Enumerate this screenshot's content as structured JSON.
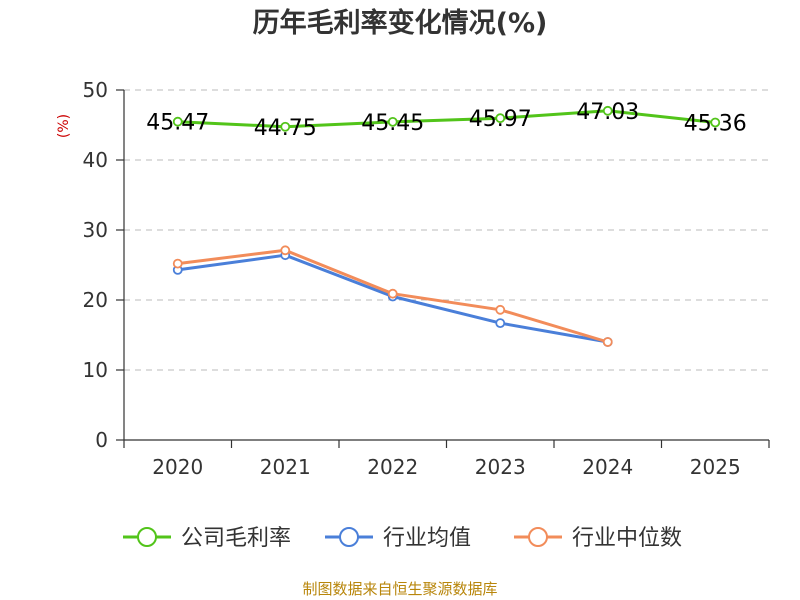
{
  "chart_data": {
    "type": "line",
    "title": "历年毛利率变化情况(%)",
    "ylabel": "(%)",
    "xlabel": "",
    "categories": [
      "2020",
      "2021",
      "2022",
      "2023",
      "2024",
      "2025"
    ],
    "ylim": [
      0,
      50
    ],
    "yticks": [
      0,
      10,
      20,
      30,
      40,
      50
    ],
    "grid": true,
    "legend_position": "bottom",
    "series": [
      {
        "name": "公司毛利率",
        "color": "#52c41a",
        "values": [
          45.47,
          44.75,
          45.45,
          45.97,
          47.03,
          45.36
        ],
        "labels": [
          "45.47",
          "44.75",
          "45.45",
          "45.97",
          "47.03",
          "45.36"
        ]
      },
      {
        "name": "行业均值",
        "color": "#4a7fd9",
        "values": [
          24.3,
          26.4,
          20.5,
          16.7,
          14.0,
          null
        ]
      },
      {
        "name": "行业中位数",
        "color": "#f28c5a",
        "values": [
          25.2,
          27.1,
          20.9,
          18.6,
          14.0,
          null
        ]
      }
    ]
  },
  "source": "制图数据来自恒生聚源数据库"
}
